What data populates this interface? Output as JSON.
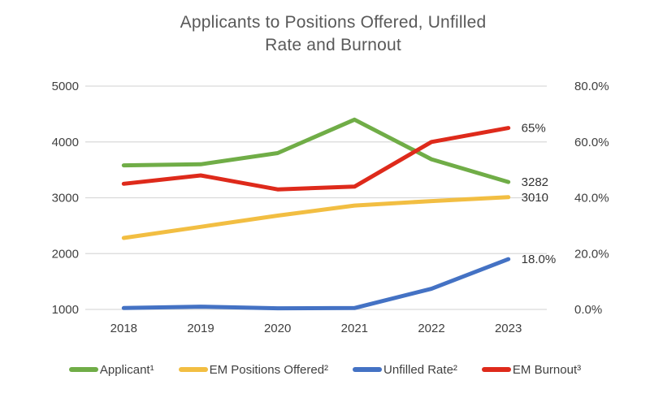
{
  "title": {
    "line1": "Applicants to Positions Offered, Unfilled",
    "line2": "Rate and Burnout"
  },
  "chart_data": {
    "type": "line",
    "title": "Applicants to Positions Offered, Unfilled Rate and Burnout",
    "categories": [
      "2018",
      "2019",
      "2020",
      "2021",
      "2022",
      "2023"
    ],
    "series": [
      {
        "name": "Applicant",
        "legend_label": "Applicant¹",
        "axis": "left",
        "color": "#70AD47",
        "values": [
          3580,
          3600,
          3800,
          4400,
          3690,
          3282
        ]
      },
      {
        "name": "EM Positions Offered",
        "legend_label": "EM Positions Offered²",
        "axis": "left",
        "color": "#F2BE42",
        "values": [
          2280,
          2480,
          2680,
          2860,
          2940,
          3010
        ]
      },
      {
        "name": "Unfilled Rate",
        "legend_label": "Unfilled Rate²",
        "axis": "right",
        "color": "#4472C4",
        "values": [
          0.5,
          1.0,
          0.4,
          0.5,
          7.4,
          18.0
        ]
      },
      {
        "name": "EM Burnout",
        "legend_label": "EM Burnout³",
        "axis": "right",
        "color": "#DE2A1B",
        "values": [
          45,
          48,
          43,
          44,
          60,
          65
        ]
      }
    ],
    "left_axis": {
      "min": 1000,
      "max": 5000,
      "ticks": [
        {
          "value": 5000,
          "label": "5000"
        },
        {
          "value": 4000,
          "label": "4000"
        },
        {
          "value": 3000,
          "label": "3000"
        },
        {
          "value": 2000,
          "label": "2000"
        },
        {
          "value": 1000,
          "label": "1000"
        }
      ]
    },
    "right_axis": {
      "min": 0,
      "max": 80,
      "ticks": [
        {
          "value": 80,
          "label": "80.0%"
        },
        {
          "value": 60,
          "label": "60.0%"
        },
        {
          "value": 40,
          "label": "40.0%"
        },
        {
          "value": 20,
          "label": "20.0%"
        },
        {
          "value": 0,
          "label": "0.0%"
        }
      ]
    },
    "annotations": [
      {
        "series_index": 3,
        "point_index": 5,
        "text": "65%"
      },
      {
        "series_index": 0,
        "point_index": 5,
        "text": "3282"
      },
      {
        "series_index": 1,
        "point_index": 5,
        "text": "3010"
      },
      {
        "series_index": 2,
        "point_index": 5,
        "text": "18.0%"
      }
    ],
    "grid": true,
    "legend_position": "bottom",
    "gridline_color": "#D9D9D9",
    "axis_text_color": "#404040",
    "annotation_text_color": "#333333",
    "title_color": "#595959"
  }
}
